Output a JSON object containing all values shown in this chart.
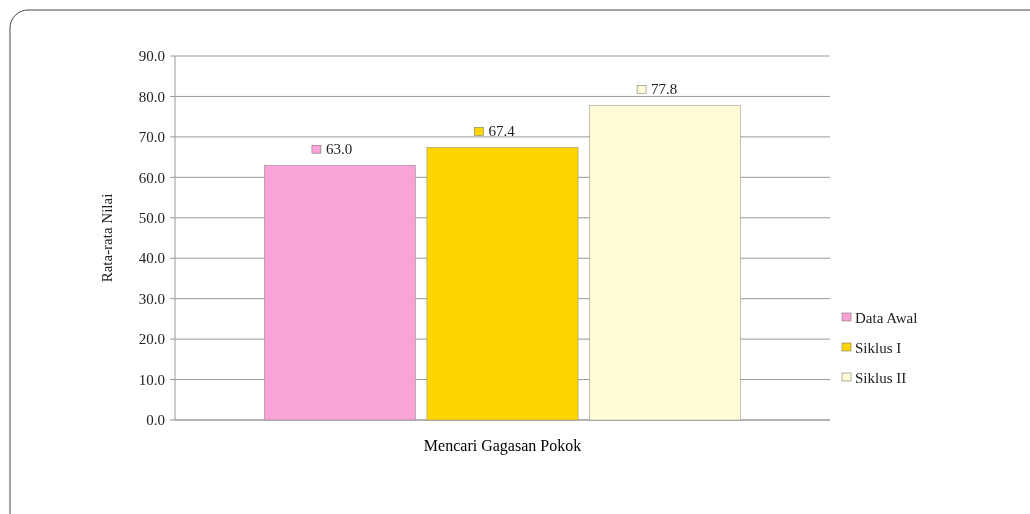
{
  "chart_data": {
    "type": "bar",
    "ylabel": "Rata-rata Nilai",
    "categories": [
      "Mencari Gagasan Pokok"
    ],
    "series": [
      {
        "name": "Data Awal",
        "color": "#f9a3d6",
        "values": [
          63.0
        ],
        "value_labels": [
          "63.0"
        ]
      },
      {
        "name": "Siklus I",
        "color": "#ffd500",
        "values": [
          67.4
        ],
        "value_labels": [
          "67.4"
        ]
      },
      {
        "name": "Siklus II",
        "color": "#fffcd6",
        "values": [
          77.8
        ],
        "value_labels": [
          "77.8"
        ]
      }
    ],
    "ylim": [
      0,
      90
    ],
    "yticks": [
      {
        "value": 0,
        "label": "0.0"
      },
      {
        "value": 10,
        "label": "10.0"
      },
      {
        "value": 20,
        "label": "20.0"
      },
      {
        "value": 30,
        "label": "30.0"
      },
      {
        "value": 40,
        "label": "40.0"
      },
      {
        "value": 50,
        "label": "50.0"
      },
      {
        "value": 60,
        "label": "60.0"
      },
      {
        "value": 70,
        "label": "70.0"
      },
      {
        "value": 80,
        "label": "80.0"
      },
      {
        "value": 90,
        "label": "90.0"
      }
    ],
    "grid": "y",
    "legend": "right"
  }
}
